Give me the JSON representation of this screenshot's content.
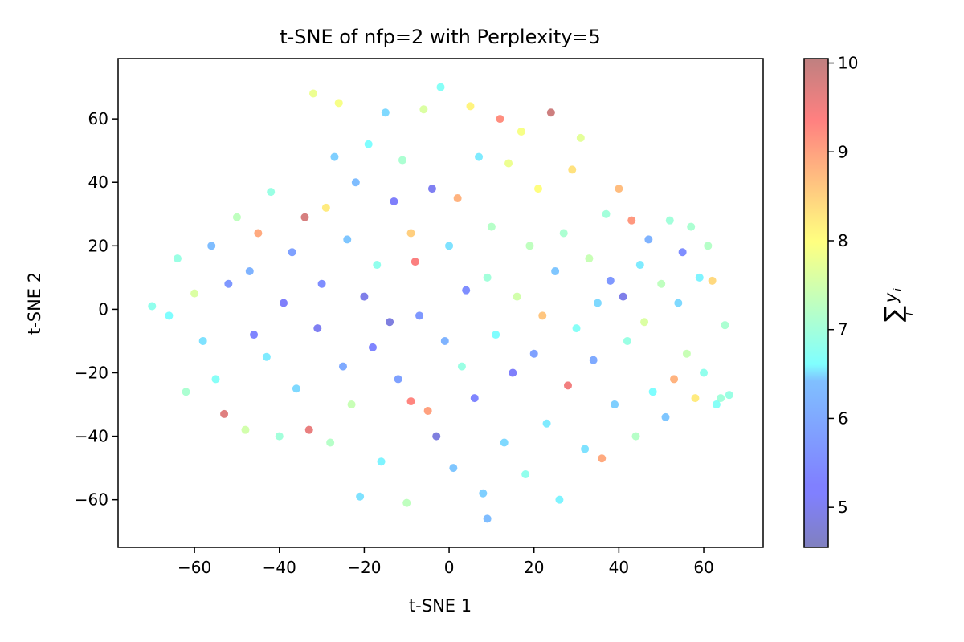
{
  "chart_data": {
    "type": "scatter",
    "title": "t-SNE of nfp=2 with Perplexity=5",
    "xlabel": "t-SNE 1",
    "ylabel": "t-SNE 2",
    "xlim": [
      -78,
      74
    ],
    "ylim": [
      -75,
      79
    ],
    "xticks": [
      -60,
      -40,
      -20,
      0,
      20,
      40,
      60
    ],
    "yticks": [
      -60,
      -40,
      -20,
      0,
      20,
      40,
      60
    ],
    "xtick_labels": [
      "−60",
      "−40",
      "−20",
      "0",
      "20",
      "40",
      "60"
    ],
    "ytick_labels": [
      "−60",
      "−40",
      "−20",
      "0",
      "20",
      "40",
      "60"
    ],
    "grid": false,
    "colormap": "jet",
    "alpha": 0.5,
    "colorbar": {
      "label": "∑ y_i (sum over i)",
      "label_main": "∑",
      "label_sub": "y",
      "label_subscript": "i",
      "label_under": "i",
      "range": [
        4.55,
        10.05
      ],
      "ticks": [
        5,
        6,
        7,
        8,
        9,
        10
      ],
      "tick_labels": [
        "5",
        "6",
        "7",
        "8",
        "9",
        "10"
      ]
    },
    "points": [
      {
        "x": -70,
        "y": 1,
        "c": 6.8
      },
      {
        "x": -66,
        "y": -2,
        "c": 6.6
      },
      {
        "x": -64,
        "y": 16,
        "c": 6.9
      },
      {
        "x": -62,
        "y": -26,
        "c": 7.1
      },
      {
        "x": -60,
        "y": 5,
        "c": 7.6
      },
      {
        "x": -58,
        "y": -10,
        "c": 6.3
      },
      {
        "x": -56,
        "y": 20,
        "c": 5.9
      },
      {
        "x": -55,
        "y": -22,
        "c": 6.7
      },
      {
        "x": -53,
        "y": -33,
        "c": 9.7
      },
      {
        "x": -52,
        "y": 8,
        "c": 5.5
      },
      {
        "x": -50,
        "y": 29,
        "c": 7.3
      },
      {
        "x": -48,
        "y": -38,
        "c": 7.5
      },
      {
        "x": -47,
        "y": 12,
        "c": 5.8
      },
      {
        "x": -46,
        "y": -8,
        "c": 5.3
      },
      {
        "x": -45,
        "y": 24,
        "c": 8.9
      },
      {
        "x": -43,
        "y": -15,
        "c": 6.4
      },
      {
        "x": -42,
        "y": 37,
        "c": 6.9
      },
      {
        "x": -40,
        "y": -40,
        "c": 7.0
      },
      {
        "x": -39,
        "y": 2,
        "c": 5.2
      },
      {
        "x": -37,
        "y": 18,
        "c": 5.6
      },
      {
        "x": -36,
        "y": -25,
        "c": 6.2
      },
      {
        "x": -34,
        "y": 29,
        "c": 9.8
      },
      {
        "x": -33,
        "y": -38,
        "c": 9.6
      },
      {
        "x": -32,
        "y": 68,
        "c": 7.8
      },
      {
        "x": -31,
        "y": -6,
        "c": 5.1
      },
      {
        "x": -30,
        "y": 8,
        "c": 5.4
      },
      {
        "x": -29,
        "y": 32,
        "c": 8.2
      },
      {
        "x": -28,
        "y": -42,
        "c": 7.2
      },
      {
        "x": -27,
        "y": 48,
        "c": 6.1
      },
      {
        "x": -26,
        "y": 65,
        "c": 7.9
      },
      {
        "x": -25,
        "y": -18,
        "c": 5.7
      },
      {
        "x": -24,
        "y": 22,
        "c": 6.0
      },
      {
        "x": -23,
        "y": -30,
        "c": 7.4
      },
      {
        "x": -22,
        "y": 40,
        "c": 5.9
      },
      {
        "x": -21,
        "y": -59,
        "c": 6.3
      },
      {
        "x": -20,
        "y": 4,
        "c": 5.0
      },
      {
        "x": -19,
        "y": 52,
        "c": 6.6
      },
      {
        "x": -18,
        "y": -12,
        "c": 5.3
      },
      {
        "x": -17,
        "y": 14,
        "c": 6.8
      },
      {
        "x": -16,
        "y": -48,
        "c": 6.5
      },
      {
        "x": -15,
        "y": 62,
        "c": 6.2
      },
      {
        "x": -14,
        "y": -4,
        "c": 4.9
      },
      {
        "x": -13,
        "y": 34,
        "c": 5.2
      },
      {
        "x": -12,
        "y": -22,
        "c": 5.6
      },
      {
        "x": -11,
        "y": 47,
        "c": 7.1
      },
      {
        "x": -10,
        "y": -61,
        "c": 7.3
      },
      {
        "x": -9,
        "y": 24,
        "c": 8.5
      },
      {
        "x": -9,
        "y": -29,
        "c": 9.3
      },
      {
        "x": -8,
        "y": 15,
        "c": 9.4
      },
      {
        "x": -7,
        "y": -2,
        "c": 5.5
      },
      {
        "x": -6,
        "y": 63,
        "c": 7.6
      },
      {
        "x": -5,
        "y": -32,
        "c": 9.0
      },
      {
        "x": -4,
        "y": 38,
        "c": 5.1
      },
      {
        "x": -3,
        "y": -40,
        "c": 4.9
      },
      {
        "x": -2,
        "y": 70,
        "c": 6.7
      },
      {
        "x": -1,
        "y": -10,
        "c": 5.8
      },
      {
        "x": 0,
        "y": 20,
        "c": 6.3
      },
      {
        "x": 1,
        "y": -50,
        "c": 6.0
      },
      {
        "x": 2,
        "y": 35,
        "c": 8.8
      },
      {
        "x": 3,
        "y": -18,
        "c": 6.9
      },
      {
        "x": 4,
        "y": 6,
        "c": 5.4
      },
      {
        "x": 5,
        "y": 64,
        "c": 8.1
      },
      {
        "x": 6,
        "y": -28,
        "c": 5.3
      },
      {
        "x": 7,
        "y": 48,
        "c": 6.4
      },
      {
        "x": 8,
        "y": -58,
        "c": 6.1
      },
      {
        "x": 9,
        "y": 10,
        "c": 7.0
      },
      {
        "x": 9,
        "y": -66,
        "c": 5.9
      },
      {
        "x": 10,
        "y": 26,
        "c": 7.2
      },
      {
        "x": 11,
        "y": -8,
        "c": 6.6
      },
      {
        "x": 12,
        "y": 60,
        "c": 9.2
      },
      {
        "x": 13,
        "y": -42,
        "c": 6.2
      },
      {
        "x": 14,
        "y": 46,
        "c": 7.8
      },
      {
        "x": 15,
        "y": -20,
        "c": 5.2
      },
      {
        "x": 16,
        "y": 4,
        "c": 7.5
      },
      {
        "x": 17,
        "y": 56,
        "c": 7.9
      },
      {
        "x": 18,
        "y": -52,
        "c": 6.8
      },
      {
        "x": 19,
        "y": 20,
        "c": 7.3
      },
      {
        "x": 20,
        "y": -14,
        "c": 5.6
      },
      {
        "x": 21,
        "y": 38,
        "c": 8.0
      },
      {
        "x": 22,
        "y": -2,
        "c": 8.6
      },
      {
        "x": 23,
        "y": -36,
        "c": 6.4
      },
      {
        "x": 24,
        "y": 62,
        "c": 9.9
      },
      {
        "x": 25,
        "y": 12,
        "c": 6.0
      },
      {
        "x": 26,
        "y": -60,
        "c": 6.5
      },
      {
        "x": 27,
        "y": 24,
        "c": 7.1
      },
      {
        "x": 28,
        "y": -24,
        "c": 9.5
      },
      {
        "x": 29,
        "y": 44,
        "c": 8.3
      },
      {
        "x": 30,
        "y": -6,
        "c": 6.7
      },
      {
        "x": 31,
        "y": 54,
        "c": 7.7
      },
      {
        "x": 32,
        "y": -44,
        "c": 6.3
      },
      {
        "x": 33,
        "y": 16,
        "c": 7.4
      },
      {
        "x": 34,
        "y": -16,
        "c": 5.7
      },
      {
        "x": 35,
        "y": 2,
        "c": 6.2
      },
      {
        "x": 36,
        "y": -47,
        "c": 8.9
      },
      {
        "x": 37,
        "y": 30,
        "c": 7.0
      },
      {
        "x": 38,
        "y": 9,
        "c": 5.5
      },
      {
        "x": 39,
        "y": -30,
        "c": 6.1
      },
      {
        "x": 40,
        "y": 38,
        "c": 8.7
      },
      {
        "x": 41,
        "y": 4,
        "c": 5.0
      },
      {
        "x": 42,
        "y": -10,
        "c": 6.9
      },
      {
        "x": 43,
        "y": 28,
        "c": 9.1
      },
      {
        "x": 44,
        "y": -40,
        "c": 7.2
      },
      {
        "x": 45,
        "y": 14,
        "c": 6.4
      },
      {
        "x": 46,
        "y": -4,
        "c": 7.6
      },
      {
        "x": 47,
        "y": 22,
        "c": 5.8
      },
      {
        "x": 48,
        "y": -26,
        "c": 6.6
      },
      {
        "x": 50,
        "y": 8,
        "c": 7.3
      },
      {
        "x": 51,
        "y": -34,
        "c": 6.0
      },
      {
        "x": 52,
        "y": 28,
        "c": 7.0
      },
      {
        "x": 53,
        "y": -22,
        "c": 8.8
      },
      {
        "x": 54,
        "y": 2,
        "c": 6.2
      },
      {
        "x": 55,
        "y": 18,
        "c": 5.4
      },
      {
        "x": 56,
        "y": -14,
        "c": 7.4
      },
      {
        "x": 57,
        "y": 26,
        "c": 7.1
      },
      {
        "x": 58,
        "y": -28,
        "c": 8.2
      },
      {
        "x": 59,
        "y": 10,
        "c": 6.5
      },
      {
        "x": 60,
        "y": -20,
        "c": 6.8
      },
      {
        "x": 61,
        "y": 20,
        "c": 7.2
      },
      {
        "x": 62,
        "y": 9,
        "c": 8.4
      },
      {
        "x": 63,
        "y": -30,
        "c": 6.7
      },
      {
        "x": 64,
        "y": -28,
        "c": 7.0
      },
      {
        "x": 65,
        "y": -5,
        "c": 7.1
      },
      {
        "x": 66,
        "y": -27,
        "c": 6.9
      }
    ]
  }
}
